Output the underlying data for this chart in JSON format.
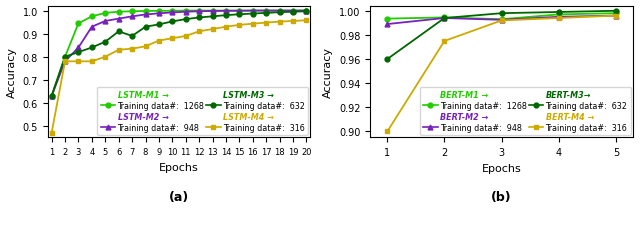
{
  "lstm": {
    "epochs": [
      1,
      2,
      3,
      4,
      5,
      6,
      7,
      8,
      9,
      10,
      11,
      12,
      13,
      14,
      15,
      16,
      17,
      18,
      19,
      20
    ],
    "m1": [
      0.63,
      0.8,
      0.945,
      0.975,
      0.99,
      0.995,
      0.997,
      0.998,
      0.999,
      0.999,
      1.0,
      1.0,
      1.0,
      1.0,
      1.0,
      1.0,
      1.0,
      1.0,
      1.0,
      1.0
    ],
    "m2": [
      0.63,
      0.78,
      0.84,
      0.93,
      0.955,
      0.965,
      0.975,
      0.983,
      0.988,
      0.992,
      0.995,
      0.997,
      0.998,
      0.999,
      0.999,
      1.0,
      1.0,
      1.0,
      1.0,
      1.0
    ],
    "m3": [
      0.63,
      0.8,
      0.82,
      0.84,
      0.865,
      0.91,
      0.89,
      0.93,
      0.94,
      0.953,
      0.963,
      0.97,
      0.975,
      0.98,
      0.984,
      0.987,
      0.99,
      0.993,
      0.995,
      0.997
    ],
    "m4": [
      0.47,
      0.78,
      0.78,
      0.78,
      0.8,
      0.83,
      0.835,
      0.845,
      0.87,
      0.88,
      0.89,
      0.91,
      0.92,
      0.93,
      0.938,
      0.943,
      0.948,
      0.952,
      0.955,
      0.958
    ],
    "labels": [
      "LSTM-M1 →",
      "LSTM-M2 →",
      "LSTM-M3 →",
      "LSTM-M4 →"
    ],
    "training_data": [
      "Training data#:  1268",
      "Training data#:  948",
      "Training data#:  632",
      "Training data#:  316"
    ],
    "colors": [
      "#22cc00",
      "#7722bb",
      "#006600",
      "#ccaa00"
    ],
    "markers": [
      "o",
      "^",
      "o",
      "s"
    ],
    "xlabel": "Epochs",
    "ylabel": "Accuracy",
    "title": "(a)",
    "xlim": [
      1,
      20
    ],
    "ylim": [
      0.45,
      1.02
    ],
    "yticks": [
      0.5,
      0.6,
      0.7,
      0.8,
      0.9,
      1.0
    ]
  },
  "bert": {
    "epochs": [
      1,
      2,
      3,
      4,
      5
    ],
    "m1": [
      0.9935,
      0.9945,
      0.993,
      0.997,
      0.998
    ],
    "m2": [
      0.989,
      0.994,
      0.9925,
      0.995,
      0.996
    ],
    "m3": [
      0.96,
      0.994,
      0.998,
      0.999,
      1.0
    ],
    "m4": [
      0.9,
      0.975,
      0.992,
      0.994,
      0.996
    ],
    "labels": [
      "BERT-M1 →",
      "BERT-M2 →",
      "BERT-M3→",
      "BERT-M4 →"
    ],
    "training_data": [
      "Training data#:  1268",
      "Training data#:  948",
      "Training data#:  632",
      "Training data#:  316"
    ],
    "colors": [
      "#22cc00",
      "#7722bb",
      "#006600",
      "#ccaa00"
    ],
    "markers": [
      "o",
      "^",
      "o",
      "s"
    ],
    "xlabel": "Epochs",
    "ylabel": "Accuracy",
    "title": "(b)",
    "xlim": [
      1,
      5
    ],
    "ylim": [
      0.895,
      1.004
    ],
    "yticks": [
      0.9,
      0.92,
      0.94,
      0.96,
      0.98,
      1.0
    ]
  }
}
